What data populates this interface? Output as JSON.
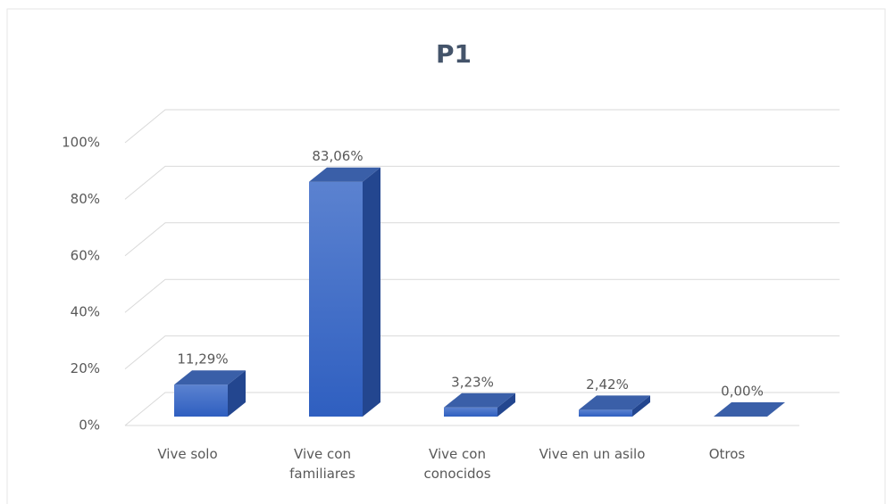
{
  "chart_data": {
    "type": "bar3d",
    "title": "P1",
    "categories": [
      "Vive solo",
      "Vive con familiares",
      "Vive con conocidos",
      "Vive en un asilo",
      "Otros"
    ],
    "values": [
      11.29,
      83.06,
      3.23,
      2.42,
      0.0
    ],
    "value_labels": [
      "11,29%",
      "83,06%",
      "3,23%",
      "2,42%",
      "0,00%"
    ],
    "color": "#4472c4",
    "ylim": [
      0,
      100
    ],
    "yticks": [
      {
        "value": 0,
        "label": "0%"
      },
      {
        "value": 20,
        "label": "20%"
      },
      {
        "value": 40,
        "label": "40%"
      },
      {
        "value": 60,
        "label": "60%"
      },
      {
        "value": 80,
        "label": "80%"
      },
      {
        "value": 100,
        "label": "100%"
      }
    ],
    "grid": true
  }
}
